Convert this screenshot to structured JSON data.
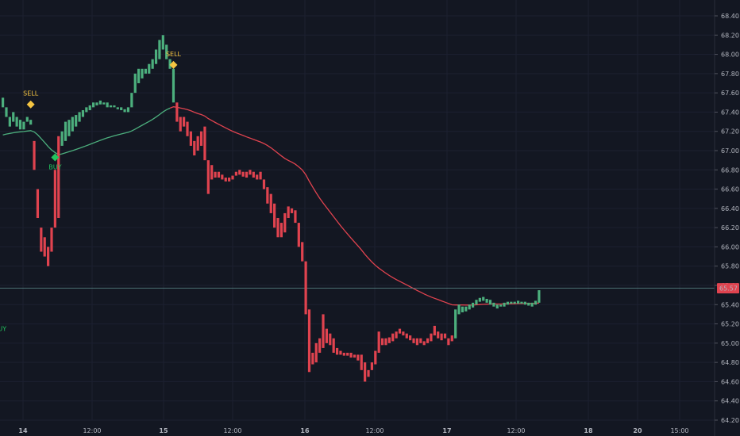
{
  "chart_data": {
    "type": "bar",
    "price_label": "65.57",
    "last_price": 65.57,
    "ylim": [
      64.15,
      68.55
    ],
    "y_ticks": [
      "64.20",
      "64.40",
      "64.60",
      "64.80",
      "65.00",
      "65.20",
      "65.40",
      "65.60",
      "65.80",
      "66.00",
      "66.20",
      "66.40",
      "66.60",
      "66.80",
      "67.00",
      "67.20",
      "67.40",
      "67.60",
      "67.80",
      "68.00",
      "68.20",
      "68.40"
    ],
    "x_ticks": [
      "14",
      "12:00",
      "15",
      "12:00",
      "16",
      "12:00",
      "17",
      "12:00",
      "18",
      "20",
      "15:00"
    ],
    "colors": {
      "up": "#4caf7d",
      "down": "#e0434f",
      "moving_average": "#e0434f",
      "moving_average_early": "#4caf7d",
      "sell_marker": "#f5c542",
      "buy_marker": "#22c55e",
      "background": "#131722",
      "price_line": "#5f8f8f"
    },
    "signals": [
      {
        "label": "SELL",
        "price": 67.48,
        "side": "sell"
      },
      {
        "label": "BUY",
        "price": 66.93,
        "side": "buy"
      },
      {
        "label": "SELL",
        "price": 67.89,
        "side": "sell"
      },
      {
        "label": "BUY",
        "price": 65.25,
        "side": "buy"
      }
    ],
    "bars": [
      [
        67.55,
        67.45,
        "up"
      ],
      [
        67.45,
        67.35,
        "up"
      ],
      [
        67.35,
        67.25,
        "up"
      ],
      [
        67.4,
        67.3,
        "up"
      ],
      [
        67.35,
        67.25,
        "up"
      ],
      [
        67.32,
        67.22,
        "up"
      ],
      [
        67.3,
        67.22,
        "up"
      ],
      [
        67.35,
        67.3,
        "up"
      ],
      [
        67.32,
        67.27,
        "up"
      ],
      [
        67.1,
        66.8,
        "down"
      ],
      [
        66.6,
        66.3,
        "down"
      ],
      [
        66.2,
        65.95,
        "down"
      ],
      [
        66.1,
        65.9,
        "down"
      ],
      [
        66.0,
        65.8,
        "down"
      ],
      [
        66.2,
        65.95,
        "down"
      ],
      [
        66.8,
        66.2,
        "down"
      ],
      [
        67.15,
        66.3,
        "down"
      ],
      [
        67.2,
        67.05,
        "up"
      ],
      [
        67.3,
        67.1,
        "up"
      ],
      [
        67.32,
        67.15,
        "up"
      ],
      [
        67.35,
        67.2,
        "up"
      ],
      [
        67.37,
        67.25,
        "up"
      ],
      [
        67.4,
        67.3,
        "up"
      ],
      [
        67.42,
        67.35,
        "up"
      ],
      [
        67.45,
        67.4,
        "up"
      ],
      [
        67.47,
        67.42,
        "up"
      ],
      [
        67.5,
        67.45,
        "up"
      ],
      [
        67.5,
        67.47,
        "up"
      ],
      [
        67.52,
        67.48,
        "up"
      ],
      [
        67.5,
        67.48,
        "up"
      ],
      [
        67.5,
        67.45,
        "up"
      ],
      [
        67.47,
        67.45,
        "up"
      ],
      [
        67.47,
        67.45,
        "up"
      ],
      [
        67.45,
        67.43,
        "up"
      ],
      [
        67.45,
        67.42,
        "up"
      ],
      [
        67.43,
        67.4,
        "up"
      ],
      [
        67.45,
        67.4,
        "up"
      ],
      [
        67.6,
        67.45,
        "up"
      ],
      [
        67.8,
        67.6,
        "up"
      ],
      [
        67.85,
        67.7,
        "up"
      ],
      [
        67.85,
        67.75,
        "up"
      ],
      [
        67.85,
        67.8,
        "up"
      ],
      [
        67.9,
        67.8,
        "up"
      ],
      [
        67.95,
        67.85,
        "up"
      ],
      [
        68.05,
        67.9,
        "up"
      ],
      [
        68.15,
        67.95,
        "up"
      ],
      [
        68.2,
        68.05,
        "up"
      ],
      [
        68.1,
        67.95,
        "up"
      ],
      [
        67.95,
        67.85,
        "up"
      ],
      [
        67.85,
        67.5,
        "up"
      ],
      [
        67.5,
        67.3,
        "down"
      ],
      [
        67.35,
        67.2,
        "down"
      ],
      [
        67.35,
        67.25,
        "down"
      ],
      [
        67.3,
        67.15,
        "down"
      ],
      [
        67.2,
        67.05,
        "down"
      ],
      [
        67.1,
        66.95,
        "down"
      ],
      [
        67.15,
        67.0,
        "down"
      ],
      [
        67.2,
        67.05,
        "down"
      ],
      [
        67.25,
        66.9,
        "down"
      ],
      [
        66.9,
        66.55,
        "down"
      ],
      [
        66.85,
        66.7,
        "down"
      ],
      [
        66.78,
        66.72,
        "down"
      ],
      [
        66.78,
        66.72,
        "down"
      ],
      [
        66.75,
        66.7,
        "down"
      ],
      [
        66.72,
        66.68,
        "down"
      ],
      [
        66.72,
        66.68,
        "down"
      ],
      [
        66.74,
        66.7,
        "down"
      ],
      [
        66.78,
        66.74,
        "down"
      ],
      [
        66.8,
        66.75,
        "down"
      ],
      [
        66.78,
        66.73,
        "down"
      ],
      [
        66.78,
        66.72,
        "down"
      ],
      [
        66.8,
        66.75,
        "down"
      ],
      [
        66.78,
        66.72,
        "down"
      ],
      [
        66.75,
        66.7,
        "down"
      ],
      [
        66.78,
        66.7,
        "down"
      ],
      [
        66.7,
        66.6,
        "down"
      ],
      [
        66.62,
        66.45,
        "down"
      ],
      [
        66.55,
        66.35,
        "down"
      ],
      [
        66.45,
        66.2,
        "down"
      ],
      [
        66.3,
        66.1,
        "down"
      ],
      [
        66.25,
        66.1,
        "down"
      ],
      [
        66.35,
        66.15,
        "down"
      ],
      [
        66.42,
        66.3,
        "down"
      ],
      [
        66.4,
        66.35,
        "down"
      ],
      [
        66.38,
        66.25,
        "down"
      ],
      [
        66.25,
        66.0,
        "down"
      ],
      [
        66.05,
        65.85,
        "down"
      ],
      [
        65.85,
        65.3,
        "down"
      ],
      [
        65.35,
        64.7,
        "down"
      ],
      [
        64.9,
        64.78,
        "down"
      ],
      [
        65.0,
        64.8,
        "down"
      ],
      [
        65.05,
        64.9,
        "down"
      ],
      [
        65.3,
        64.95,
        "down"
      ],
      [
        65.15,
        65.0,
        "down"
      ],
      [
        65.1,
        64.98,
        "down"
      ],
      [
        65.05,
        64.9,
        "down"
      ],
      [
        64.95,
        64.88,
        "down"
      ],
      [
        64.92,
        64.88,
        "down"
      ],
      [
        64.9,
        64.87,
        "down"
      ],
      [
        64.9,
        64.87,
        "down"
      ],
      [
        64.9,
        64.85,
        "down"
      ],
      [
        64.88,
        64.85,
        "down"
      ],
      [
        64.88,
        64.82,
        "down"
      ],
      [
        64.88,
        64.72,
        "down"
      ],
      [
        64.8,
        64.6,
        "down"
      ],
      [
        64.72,
        64.65,
        "down"
      ],
      [
        64.8,
        64.72,
        "down"
      ],
      [
        64.92,
        64.78,
        "down"
      ],
      [
        65.12,
        64.9,
        "down"
      ],
      [
        65.05,
        64.98,
        "down"
      ],
      [
        65.05,
        64.98,
        "down"
      ],
      [
        65.06,
        65.0,
        "down"
      ],
      [
        65.1,
        65.02,
        "down"
      ],
      [
        65.12,
        65.05,
        "down"
      ],
      [
        65.15,
        65.1,
        "down"
      ],
      [
        65.12,
        65.08,
        "down"
      ],
      [
        65.1,
        65.05,
        "down"
      ],
      [
        65.08,
        65.03,
        "down"
      ],
      [
        65.05,
        65.0,
        "down"
      ],
      [
        65.05,
        64.98,
        "down"
      ],
      [
        65.05,
        65.0,
        "down"
      ],
      [
        65.02,
        64.98,
        "down"
      ],
      [
        65.05,
        65.0,
        "down"
      ],
      [
        65.1,
        65.02,
        "down"
      ],
      [
        65.18,
        65.08,
        "down"
      ],
      [
        65.12,
        65.05,
        "down"
      ],
      [
        65.1,
        65.03,
        "down"
      ],
      [
        65.1,
        65.05,
        "down"
      ],
      [
        65.05,
        64.98,
        "down"
      ],
      [
        65.08,
        65.02,
        "down"
      ],
      [
        65.35,
        65.05,
        "up"
      ],
      [
        65.4,
        65.3,
        "up"
      ],
      [
        65.38,
        65.32,
        "up"
      ],
      [
        65.38,
        65.33,
        "up"
      ],
      [
        65.4,
        65.35,
        "up"
      ],
      [
        65.42,
        65.37,
        "up"
      ],
      [
        65.45,
        65.4,
        "up"
      ],
      [
        65.47,
        65.43,
        "up"
      ],
      [
        65.48,
        65.44,
        "up"
      ],
      [
        65.46,
        65.42,
        "up"
      ],
      [
        65.45,
        65.4,
        "up"
      ],
      [
        65.42,
        65.38,
        "up"
      ],
      [
        65.4,
        65.36,
        "up"
      ],
      [
        65.4,
        65.38,
        "up"
      ],
      [
        65.42,
        65.38,
        "up"
      ],
      [
        65.43,
        65.4,
        "up"
      ],
      [
        65.43,
        65.41,
        "up"
      ],
      [
        65.43,
        65.41,
        "up"
      ],
      [
        65.44,
        65.41,
        "up"
      ],
      [
        65.43,
        65.41,
        "up"
      ],
      [
        65.43,
        65.4,
        "up"
      ],
      [
        65.42,
        65.39,
        "up"
      ],
      [
        65.42,
        65.38,
        "up"
      ],
      [
        65.44,
        65.4,
        "up"
      ],
      [
        65.55,
        65.42,
        "up"
      ]
    ]
  }
}
